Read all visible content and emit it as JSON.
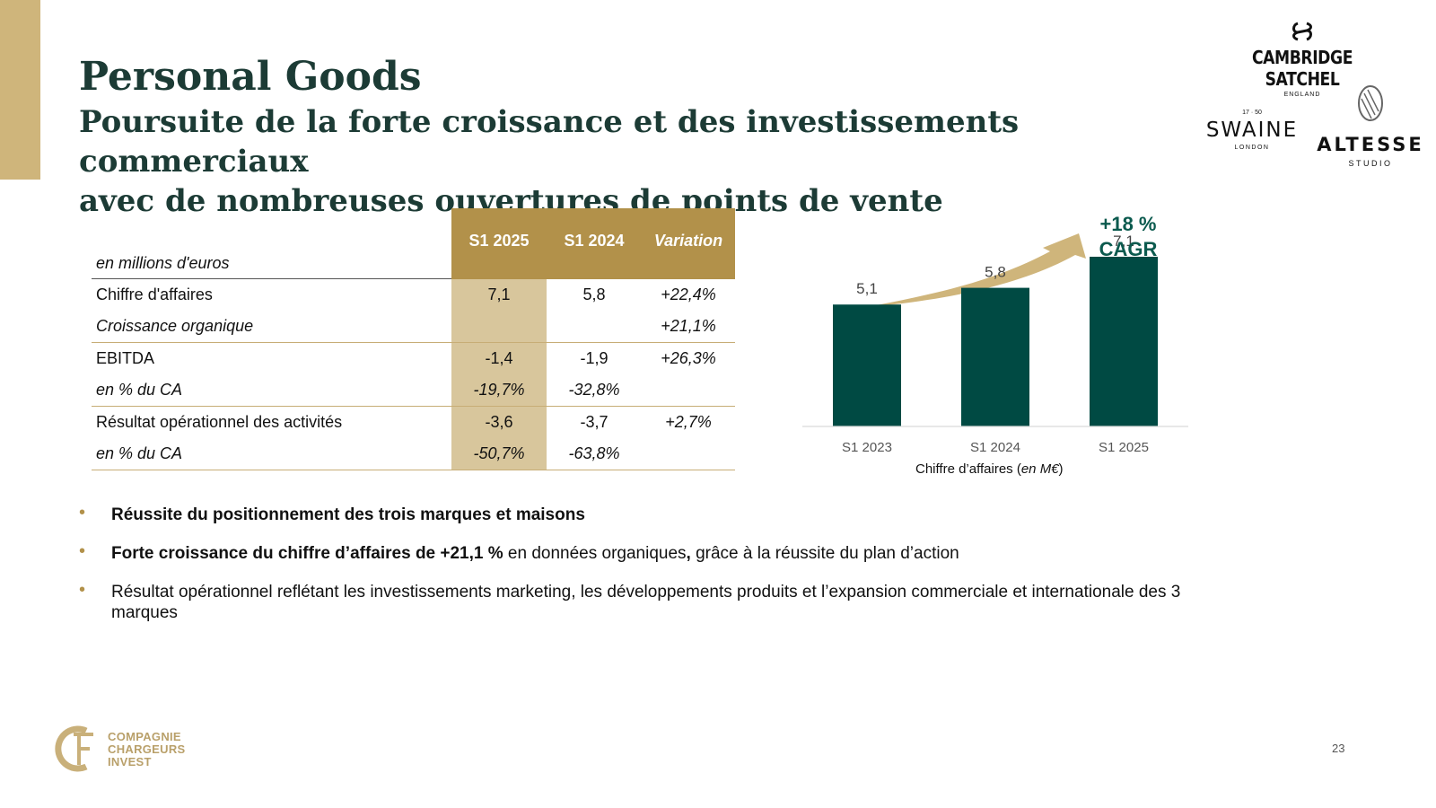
{
  "header": {
    "title": "Personal Goods",
    "subtitle_line1": "Poursuite de la forte croissance et des investissements commerciaux",
    "subtitle_line2": "avec de nombreuses ouvertures de points de vente"
  },
  "logos": {
    "cambridge": {
      "name": "CAMBRIDGE SATCHEL",
      "sub": "ENGLAND"
    },
    "swaine": {
      "mark": "17 · 50",
      "name": "SWAINE",
      "sub": "LONDON"
    },
    "altesse": {
      "name": "ALTESSE",
      "sub": "STUDIO"
    }
  },
  "table": {
    "unit_label": "en millions d'euros",
    "columns": [
      "S1 2025",
      "S1 2024",
      "Variation"
    ],
    "rows": [
      {
        "label": "Chiffre d'affaires",
        "s1_2025": "7,1",
        "s1_2024": "5,8",
        "variation": "+22,4%"
      },
      {
        "label": "Croissance organique",
        "s1_2025": "",
        "s1_2024": "",
        "variation": "+21,1%"
      },
      {
        "label": "EBITDA",
        "s1_2025": "-1,4",
        "s1_2024": "-1,9",
        "variation": "+26,3%"
      },
      {
        "label": "en % du CA",
        "s1_2025": "-19,7%",
        "s1_2024": "-32,8%",
        "variation": ""
      },
      {
        "label": "Résultat opérationnel des activités",
        "s1_2025": "-3,6",
        "s1_2024": "-3,7",
        "variation": "+2,7%"
      },
      {
        "label": "en % du CA",
        "s1_2025": "-50,7%",
        "s1_2024": "-63,8%",
        "variation": ""
      }
    ]
  },
  "chart_data": {
    "type": "bar",
    "categories": [
      "S1 2023",
      "S1 2024",
      "S1 2025"
    ],
    "values": [
      5.1,
      5.8,
      7.1
    ],
    "value_labels": [
      "5,1",
      "5,8",
      "7,1"
    ],
    "ylim": [
      0,
      7.7
    ],
    "bar_color": "#004a43",
    "annotation_line1": "+18 %",
    "annotation_line2": "CAGR",
    "xlabel_prefix": "Chiffre d’affaires (",
    "xlabel_unit": "en M€",
    "xlabel_suffix": ")"
  },
  "bullets": {
    "b1": "Réussite du positionnement des trois marques et maisons",
    "b2_bold": "Forte croissance  du chiffre d’affaires de +21,1 %",
    "b2_text": " en données organiques",
    "b2_comma": ",",
    "b2_rest": " grâce à la réussite du plan d’action",
    "b3": "Résultat opérationnel reflétant les investissements marketing, les développements produits et l’expansion commerciale et internationale des 3 marques"
  },
  "footer": {
    "logo_line1": "COMPAGNIE",
    "logo_line2": "CHARGEURS",
    "logo_line3": "INVEST",
    "page_number": "23"
  },
  "colors": {
    "gold": "#b2914a",
    "gold_light": "#d8c69c",
    "green": "#004a43",
    "title": "#1c3b35"
  }
}
